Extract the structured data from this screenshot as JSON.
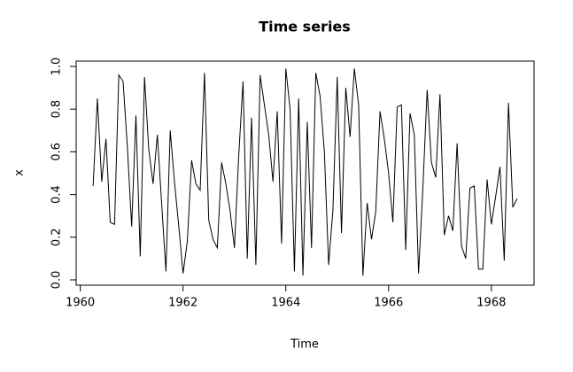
{
  "chart_data": {
    "type": "line",
    "title": "Time series",
    "x_label": "Time",
    "y_label": "x",
    "color": "#000000",
    "x": [
      1960.25,
      1960.333,
      1960.417,
      1960.5,
      1960.583,
      1960.667,
      1960.75,
      1960.833,
      1960.917,
      1961,
      1961.083,
      1961.167,
      1961.25,
      1961.333,
      1961.417,
      1961.5,
      1961.583,
      1961.667,
      1961.75,
      1961.833,
      1961.917,
      1962,
      1962.083,
      1962.167,
      1962.25,
      1962.333,
      1962.417,
      1962.5,
      1962.583,
      1962.667,
      1962.75,
      1962.833,
      1962.917,
      1963,
      1963.083,
      1963.167,
      1963.25,
      1963.333,
      1963.417,
      1963.5,
      1963.583,
      1963.667,
      1963.75,
      1963.833,
      1963.917,
      1964,
      1964.083,
      1964.167,
      1964.25,
      1964.333,
      1964.417,
      1964.5,
      1964.583,
      1964.667,
      1964.75,
      1964.833,
      1964.917,
      1965,
      1965.083,
      1965.167,
      1965.25,
      1965.333,
      1965.417,
      1965.5,
      1965.583,
      1965.667,
      1965.75,
      1965.833,
      1965.917,
      1966,
      1966.083,
      1966.167,
      1966.25,
      1966.333,
      1966.417,
      1966.5,
      1966.583,
      1966.667,
      1966.75,
      1966.833,
      1966.917,
      1967,
      1967.083,
      1967.167,
      1967.25,
      1967.333,
      1967.417,
      1967.5,
      1967.583,
      1967.667,
      1967.75,
      1967.833,
      1967.917,
      1968,
      1968.083,
      1968.167,
      1968.25,
      1968.333,
      1968.417,
      1968.5
    ],
    "values": [
      0.44,
      0.85,
      0.46,
      0.66,
      0.27,
      0.26,
      0.96,
      0.93,
      0.62,
      0.25,
      0.77,
      0.11,
      0.95,
      0.61,
      0.45,
      0.68,
      0.36,
      0.04,
      0.7,
      0.46,
      0.25,
      0.03,
      0.18,
      0.56,
      0.45,
      0.42,
      0.97,
      0.28,
      0.19,
      0.15,
      0.55,
      0.45,
      0.32,
      0.15,
      0.58,
      0.93,
      0.1,
      0.76,
      0.07,
      0.96,
      0.82,
      0.68,
      0.46,
      0.79,
      0.17,
      0.99,
      0.8,
      0.04,
      0.85,
      0.02,
      0.74,
      0.15,
      0.97,
      0.86,
      0.6,
      0.07,
      0.33,
      0.95,
      0.22,
      0.9,
      0.67,
      0.99,
      0.82,
      0.02,
      0.36,
      0.19,
      0.32,
      0.79,
      0.66,
      0.5,
      0.27,
      0.81,
      0.82,
      0.14,
      0.78,
      0.68,
      0.03,
      0.43,
      0.89,
      0.55,
      0.48,
      0.87,
      0.21,
      0.3,
      0.23,
      0.64,
      0.16,
      0.1,
      0.43,
      0.44,
      0.05,
      0.05,
      0.47,
      0.26,
      0.39,
      0.53,
      0.09,
      0.83,
      0.34,
      0.38
    ],
    "xlim": [
      1959.92,
      1968.83
    ],
    "xticks": [
      1960,
      1962,
      1964,
      1966,
      1968
    ],
    "ylim": [
      -0.025,
      1.025
    ],
    "yticks": [
      {
        "value": 0,
        "label": "0.0"
      },
      0.2,
      0.4,
      0.6,
      0.8,
      {
        "value": 1,
        "label": "1.0"
      }
    ]
  }
}
